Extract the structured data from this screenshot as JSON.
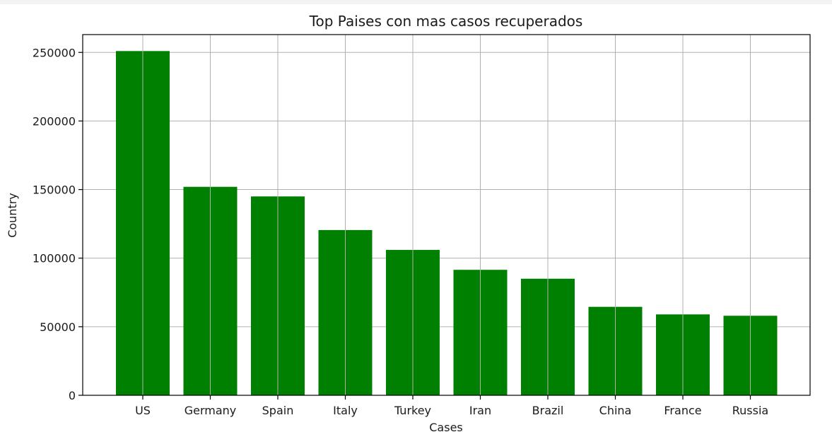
{
  "chart_data": {
    "type": "bar",
    "title": "Top Paises con mas casos recuperados",
    "xlabel": "Cases",
    "ylabel": "Country",
    "categories": [
      "US",
      "Germany",
      "Spain",
      "Italy",
      "Turkey",
      "Iran",
      "Brazil",
      "China",
      "France",
      "Russia"
    ],
    "values": [
      251000,
      152000,
      145000,
      120500,
      106000,
      91500,
      85000,
      64500,
      59000,
      58000
    ],
    "ylim": [
      0,
      263000
    ],
    "yticks": [
      0,
      50000,
      100000,
      150000,
      200000,
      250000
    ],
    "grid": true,
    "bar_color": "#008000",
    "legend": "none"
  }
}
